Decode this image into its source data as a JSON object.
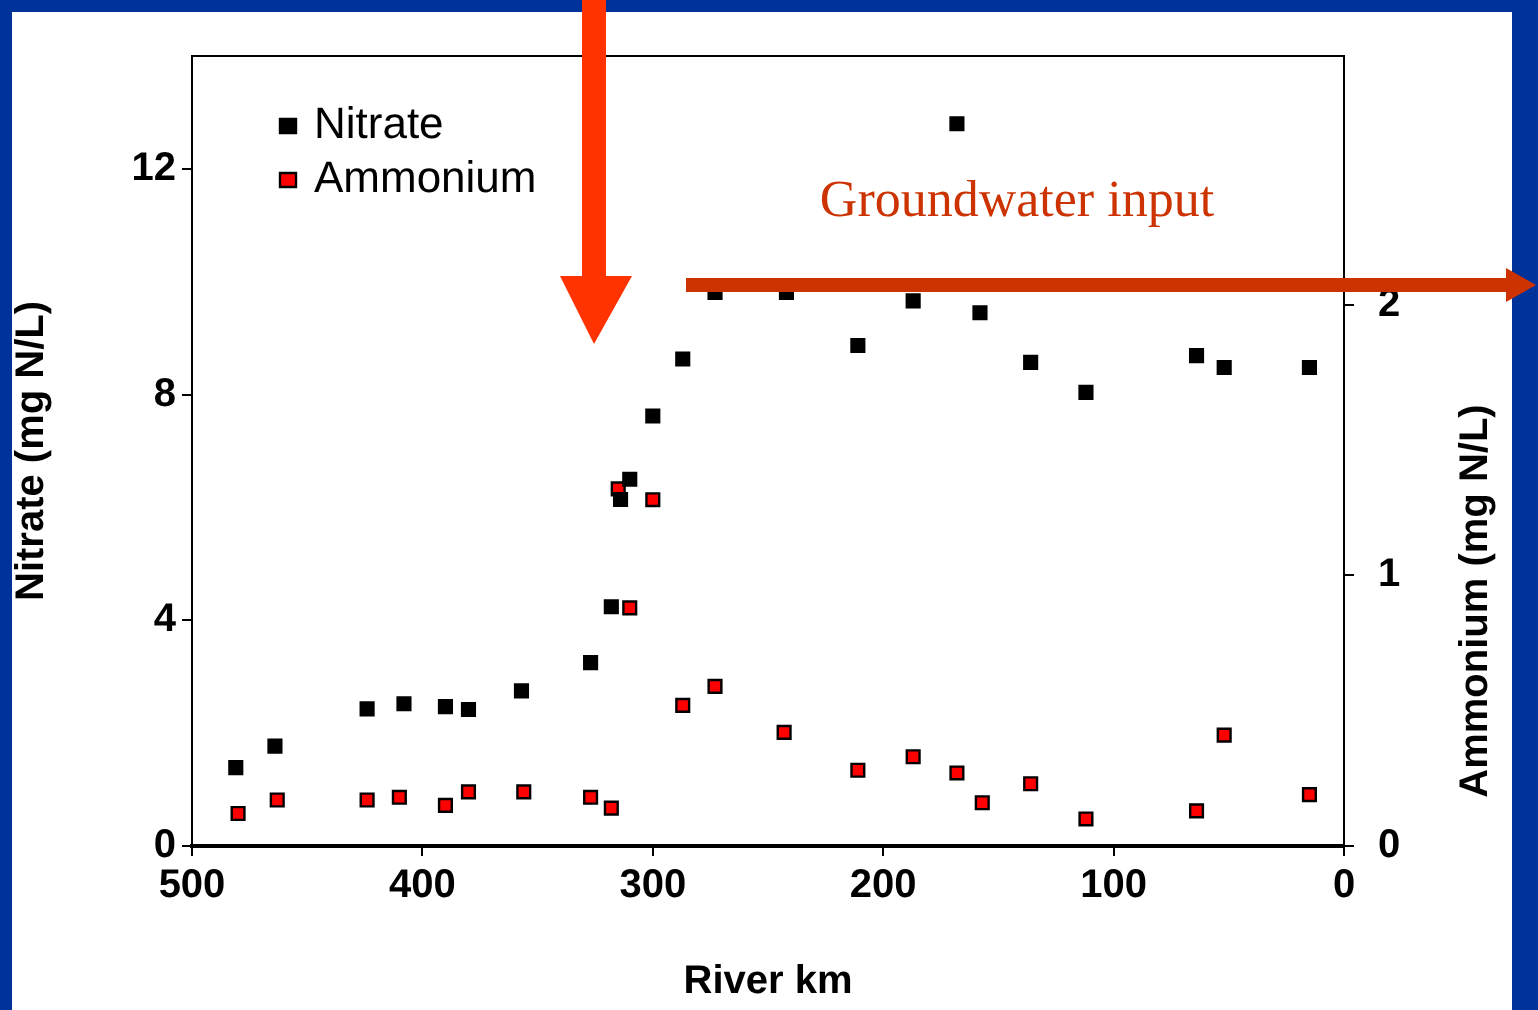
{
  "chart_data": {
    "type": "scatter",
    "xlabel": "River km",
    "ylabel": "Nitrate (mg N/L)",
    "y2label": "Ammonium (mg N/L)",
    "annotations": [
      "Groundwater input"
    ],
    "xlim": [
      500,
      0
    ],
    "xticks": [
      500,
      400,
      300,
      200,
      100,
      0
    ],
    "ylim": [
      0,
      14
    ],
    "yticks": [
      0,
      4,
      8,
      12
    ],
    "y2lim": [
      0,
      2.92
    ],
    "y2ticks": [
      0,
      1,
      2
    ],
    "grid": false,
    "legend": "top left",
    "marker": "square",
    "series": [
      {
        "name": "Nitrate",
        "color": "#000000",
        "x": [
          481,
          464,
          424,
          408,
          390,
          380,
          357,
          327,
          318,
          314,
          310,
          300,
          287,
          273,
          242,
          211,
          187,
          168,
          158,
          136,
          112,
          64,
          52,
          15
        ],
        "values": [
          1.39,
          1.77,
          2.43,
          2.52,
          2.47,
          2.42,
          2.75,
          3.25,
          4.24,
          6.14,
          6.5,
          7.62,
          8.63,
          9.81,
          9.81,
          8.87,
          9.66,
          12.8,
          9.45,
          8.57,
          8.04,
          8.69,
          8.48,
          8.48
        ]
      },
      {
        "name": "Ammonium",
        "color": "#ff0000",
        "axis": "y2",
        "x": [
          480,
          463,
          424,
          410,
          390,
          380,
          356,
          327,
          318,
          315,
          310,
          300,
          287,
          273,
          243,
          211,
          187,
          168,
          157,
          136,
          112,
          64,
          52,
          15
        ],
        "values": [
          0.12,
          0.17,
          0.17,
          0.18,
          0.15,
          0.2,
          0.2,
          0.18,
          0.14,
          1.32,
          0.88,
          1.28,
          0.52,
          0.59,
          0.42,
          0.28,
          0.33,
          0.27,
          0.16,
          0.23,
          0.1,
          0.13,
          0.41,
          0.19
        ]
      }
    ]
  }
}
